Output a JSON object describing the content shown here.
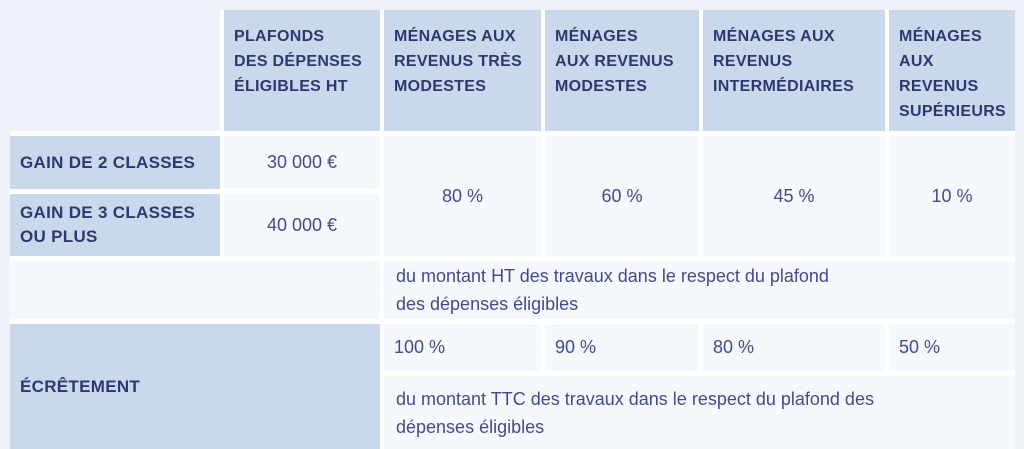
{
  "table": {
    "header": {
      "plafonds": "PLAFONDS\nDES DÉPENSES\nÉLIGIBLES HT",
      "tres_modestes": "MÉNAGES AUX\nREVENUS TRÈS\nMODESTES",
      "modestes": "MÉNAGES\nAUX REVENUS\nMODESTES",
      "intermediaires": "MÉNAGES AUX\nREVENUS\nINTERMÉDIAIRES",
      "superieurs": "MÉNAGES\nAUX\nREVENUS\nSUPÉRIEURS"
    },
    "gain_2_classes": {
      "label": "GAIN DE 2 CLASSES",
      "plafond": "30 000 €"
    },
    "gain_3_classes": {
      "label": "GAIN DE 3 CLASSES\nOU PLUS",
      "plafond": "40 000 €"
    },
    "taux_aide": {
      "tres_modestes": "80 %",
      "modestes": "60 %",
      "intermediaires": "45 %",
      "superieurs": "10 %",
      "note": "du montant HT des travaux dans le respect du plafond\ndes dépenses éligibles"
    },
    "ecretement": {
      "label": "ÉCRÊTEMENT",
      "tres_modestes": "100 %",
      "modestes": "90 %",
      "intermediaires": "80 %",
      "superieurs": "50 %",
      "note": "du montant TTC des travaux dans le respect du plafond des\ndépenses éligibles"
    },
    "colors": {
      "page_background": "#eff3f9",
      "header_cell_background": "#c9d9eb",
      "value_cell_background": "#f5f8fc",
      "cell_gap": "#ffffff",
      "heading_text": "#2c3971",
      "value_text": "#414c8a"
    }
  }
}
